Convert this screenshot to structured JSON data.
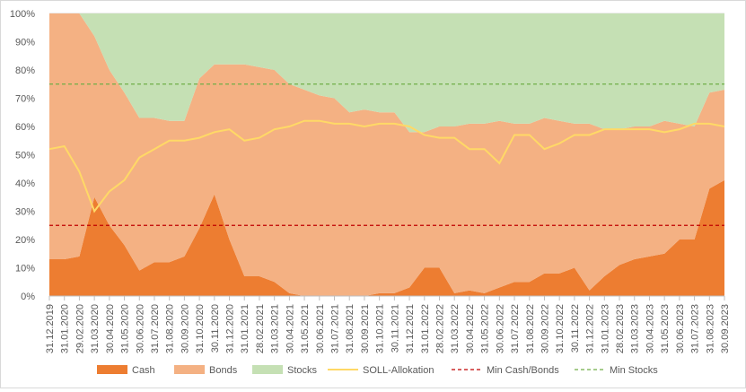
{
  "chart_data": {
    "type": "area",
    "stacked": true,
    "percent": true,
    "x": [
      "31.12.2019",
      "31.01.2020",
      "29.02.2020",
      "31.03.2020",
      "30.04.2020",
      "31.05.2020",
      "30.06.2020",
      "31.07.2020",
      "31.08.2020",
      "30.09.2020",
      "31.10.2020",
      "30.11.2020",
      "31.12.2020",
      "31.01.2021",
      "28.02.2021",
      "31.03.2021",
      "30.04.2021",
      "31.05.2021",
      "30.06.2021",
      "31.07.2021",
      "31.08.2021",
      "30.09.2021",
      "31.10.2021",
      "30.11.2021",
      "31.12.2021",
      "31.01.2022",
      "28.02.2022",
      "31.03.2022",
      "30.04.2022",
      "31.05.2022",
      "30.06.2022",
      "31.07.2022",
      "31.08.2022",
      "30.09.2022",
      "31.10.2022",
      "30.11.2022",
      "31.12.2022",
      "31.01.2023",
      "28.02.2023",
      "31.03.2023",
      "30.04.2023",
      "31.05.2023",
      "30.06.2023",
      "31.07.2023",
      "31.08.2023",
      "30.09.2023"
    ],
    "series": [
      {
        "name": "Cash",
        "kind": "area",
        "color": "#ed7d31",
        "values": [
          13,
          13,
          14,
          35,
          25,
          18,
          9,
          12,
          12,
          14,
          24,
          36,
          20,
          7,
          7,
          5,
          1,
          0,
          0,
          0,
          0,
          0,
          1,
          1,
          3,
          10,
          10,
          1,
          2,
          1,
          3,
          5,
          5,
          8,
          8,
          10,
          2,
          7,
          11,
          13,
          14,
          15,
          20,
          20,
          38,
          41
        ]
      },
      {
        "name": "Bonds",
        "kind": "area",
        "color": "#f4b183",
        "values": [
          87,
          87,
          86,
          57,
          55,
          54,
          54,
          51,
          50,
          48,
          53,
          46,
          62,
          75,
          74,
          75,
          74,
          73,
          71,
          70,
          65,
          66,
          64,
          64,
          55,
          48,
          50,
          59,
          59,
          60,
          59,
          56,
          56,
          55,
          54,
          51,
          59,
          52,
          48,
          47,
          46,
          47,
          41,
          40,
          34,
          32
        ]
      },
      {
        "name": "Stocks",
        "kind": "area",
        "color": "#c5e0b4",
        "values": [
          0,
          0,
          0,
          8,
          20,
          28,
          37,
          37,
          38,
          38,
          23,
          18,
          18,
          18,
          19,
          20,
          25,
          27,
          29,
          30,
          35,
          34,
          35,
          35,
          42,
          42,
          40,
          40,
          39,
          39,
          38,
          39,
          39,
          37,
          38,
          39,
          39,
          41,
          41,
          40,
          40,
          38,
          39,
          40,
          28,
          27
        ]
      },
      {
        "name": "SOLL-Allokation",
        "kind": "line",
        "color": "#ffd966",
        "values": [
          52,
          53,
          44,
          30,
          37,
          41,
          49,
          52,
          55,
          55,
          56,
          58,
          59,
          55,
          56,
          59,
          60,
          62,
          62,
          61,
          61,
          60,
          61,
          61,
          60,
          57,
          56,
          56,
          52,
          52,
          47,
          57,
          57,
          52,
          54,
          57,
          57,
          59,
          59,
          59,
          59,
          58,
          59,
          61,
          61,
          60
        ]
      },
      {
        "name": "Min Cash/Bonds",
        "kind": "hline",
        "color": "#c00000",
        "value": 25
      },
      {
        "name": "Min Stocks",
        "kind": "hline",
        "color": "#70ad47",
        "value": 75
      }
    ],
    "ylim": [
      0,
      100
    ],
    "yticks": [
      "0%",
      "10%",
      "20%",
      "30%",
      "40%",
      "50%",
      "60%",
      "70%",
      "80%",
      "90%",
      "100%"
    ],
    "grid": true,
    "legend": "bottom",
    "title": "",
    "xlabel": "",
    "ylabel": ""
  }
}
